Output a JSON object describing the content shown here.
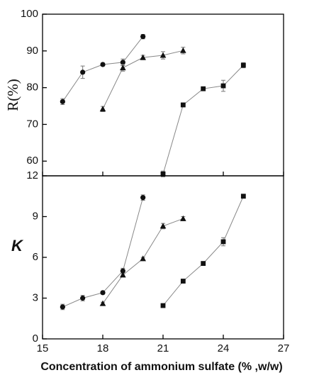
{
  "chart_data": [
    {
      "type": "scatter-line",
      "ylabel": "R(%)",
      "xlim": [
        15,
        27
      ],
      "xticks": [
        15,
        18,
        21,
        24,
        27
      ],
      "ylim": [
        56,
        100
      ],
      "yticks": [
        60,
        70,
        80,
        90,
        100
      ],
      "series": [
        {
          "marker": "circle",
          "color": "#111111",
          "x": [
            16,
            17,
            18,
            19,
            20
          ],
          "values": [
            76.2,
            84.2,
            86.3,
            86.9,
            93.9
          ],
          "errors": [
            0.8,
            1.7,
            0.4,
            0.9,
            0.6
          ]
        },
        {
          "marker": "triangle",
          "color": "#111111",
          "x": [
            18,
            19,
            20,
            21,
            22
          ],
          "values": [
            74.2,
            85.4,
            88.2,
            88.8,
            90.1
          ],
          "errors": [
            0.7,
            0.9,
            0.6,
            1.0,
            0.9
          ]
        },
        {
          "marker": "square",
          "color": "#111111",
          "x": [
            21,
            22,
            23,
            24,
            25
          ],
          "values": [
            56.5,
            75.3,
            79.7,
            80.5,
            86.1
          ],
          "errors": [
            0.8,
            0.5,
            0.4,
            1.5,
            0.7
          ]
        }
      ]
    },
    {
      "type": "scatter-line",
      "ylabel": "K",
      "xlabel": "Concentration of ammonium sulfate (% ,w/w)",
      "xlim": [
        15,
        27
      ],
      "xticks": [
        15,
        18,
        21,
        24,
        27
      ],
      "ylim": [
        0,
        12
      ],
      "yticks": [
        0,
        3,
        6,
        9,
        12
      ],
      "series": [
        {
          "marker": "circle",
          "color": "#111111",
          "x": [
            16,
            17,
            18,
            19,
            20
          ],
          "values": [
            2.35,
            3.0,
            3.4,
            5.0,
            10.4
          ],
          "errors": [
            0.2,
            0.2,
            0.1,
            0.2,
            0.2
          ]
        },
        {
          "marker": "triangle",
          "color": "#111111",
          "x": [
            18,
            19,
            20,
            21,
            22
          ],
          "values": [
            2.6,
            4.7,
            5.9,
            8.3,
            8.85
          ],
          "errors": [
            0.1,
            0.1,
            0.1,
            0.2,
            0.15
          ]
        },
        {
          "marker": "square",
          "color": "#111111",
          "x": [
            21,
            22,
            23,
            24,
            25
          ],
          "values": [
            2.45,
            4.25,
            5.55,
            7.15,
            10.5
          ],
          "errors": [
            0.1,
            0.1,
            0.1,
            0.3,
            0.1
          ]
        }
      ]
    }
  ]
}
